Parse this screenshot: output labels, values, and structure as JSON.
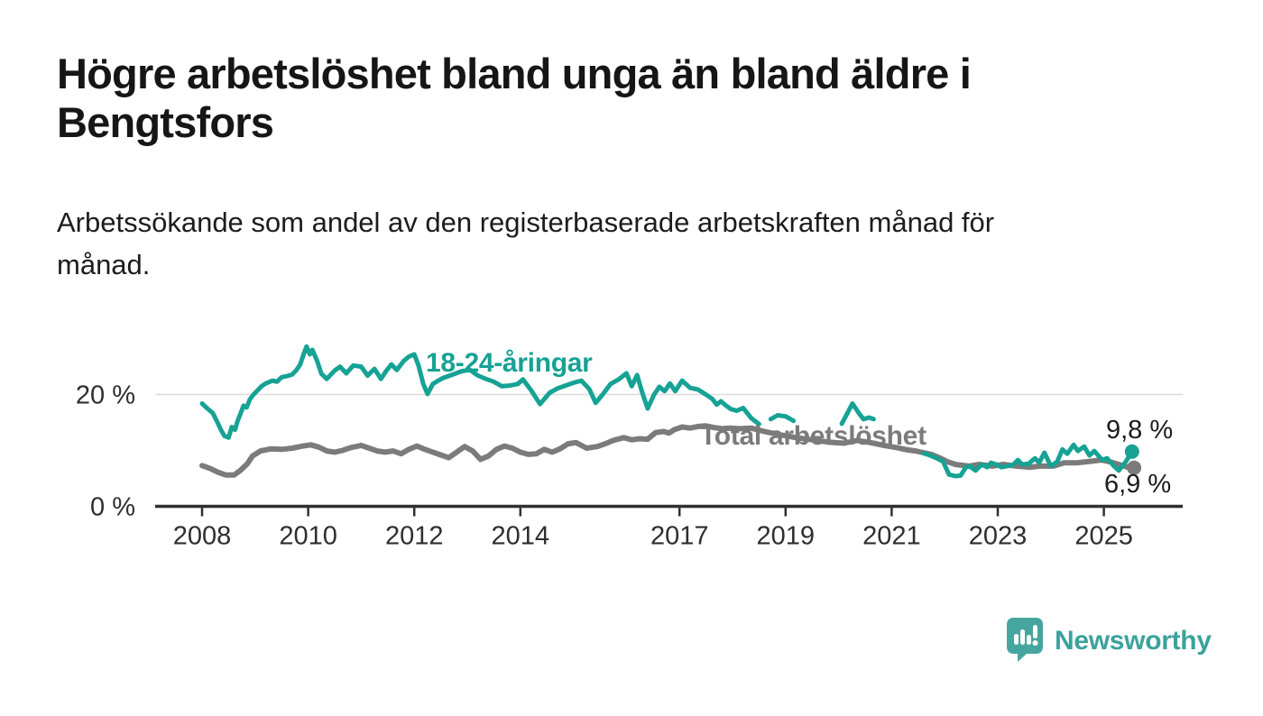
{
  "header": {
    "title_lines": [
      "Högre arbetslöshet bland unga än bland äldre i",
      "Bengtsfors"
    ],
    "subtitle_lines": [
      "Arbetssökande som andel av den registerbaserade arbetskraften månad för",
      "månad."
    ]
  },
  "chart_data": {
    "type": "line",
    "unit": "%",
    "grid": "horizontal gridline at 20 % only",
    "legend_position": "inline labels on lines",
    "ylim": [
      0,
      31
    ],
    "x_range": [
      2008,
      2025.6
    ],
    "y_ticks": [
      {
        "value": 0,
        "label": "0 %"
      },
      {
        "value": 20,
        "label": "20 %"
      }
    ],
    "x_ticks": [
      {
        "value": 2008,
        "label": "2008"
      },
      {
        "value": 2010,
        "label": "2010"
      },
      {
        "value": 2012,
        "label": "2012"
      },
      {
        "value": 2014,
        "label": "2014"
      },
      {
        "value": 2017,
        "label": "2017"
      },
      {
        "value": 2019,
        "label": "2019"
      },
      {
        "value": 2021,
        "label": "2021"
      },
      {
        "value": 2023,
        "label": "2023"
      },
      {
        "value": 2025,
        "label": "2025"
      }
    ],
    "series": [
      {
        "name": "Total arbetslöshet",
        "color": "#7b7b7b",
        "end_label": "6,9 %",
        "end_value": 6.9,
        "segments": [
          [
            [
              2008.0,
              7.3
            ],
            [
              2008.15,
              6.8
            ],
            [
              2008.3,
              6.1
            ],
            [
              2008.45,
              5.6
            ],
            [
              2008.6,
              5.6
            ],
            [
              2008.72,
              6.4
            ],
            [
              2008.85,
              7.6
            ],
            [
              2008.95,
              9.0
            ],
            [
              2009.1,
              9.9
            ],
            [
              2009.3,
              10.3
            ],
            [
              2009.5,
              10.2
            ],
            [
              2009.7,
              10.4
            ],
            [
              2009.9,
              10.8
            ],
            [
              2010.05,
              11.0
            ],
            [
              2010.2,
              10.6
            ],
            [
              2010.35,
              9.9
            ],
            [
              2010.5,
              9.7
            ],
            [
              2010.65,
              10.0
            ],
            [
              2010.8,
              10.5
            ],
            [
              2011.0,
              10.9
            ],
            [
              2011.15,
              10.4
            ],
            [
              2011.3,
              9.9
            ],
            [
              2011.45,
              9.7
            ],
            [
              2011.6,
              9.9
            ],
            [
              2011.75,
              9.4
            ],
            [
              2011.9,
              10.2
            ],
            [
              2012.05,
              10.8
            ],
            [
              2012.2,
              10.2
            ],
            [
              2012.35,
              9.7
            ],
            [
              2012.5,
              9.2
            ],
            [
              2012.65,
              8.7
            ],
            [
              2012.8,
              9.7
            ],
            [
              2012.95,
              10.7
            ],
            [
              2013.1,
              9.9
            ],
            [
              2013.25,
              8.4
            ],
            [
              2013.4,
              9.0
            ],
            [
              2013.55,
              10.2
            ],
            [
              2013.7,
              10.8
            ],
            [
              2013.85,
              10.4
            ],
            [
              2014.0,
              9.7
            ],
            [
              2014.15,
              9.3
            ],
            [
              2014.3,
              9.4
            ],
            [
              2014.45,
              10.2
            ],
            [
              2014.6,
              9.7
            ],
            [
              2014.75,
              10.3
            ],
            [
              2014.9,
              11.2
            ],
            [
              2015.05,
              11.4
            ],
            [
              2015.25,
              10.4
            ],
            [
              2015.45,
              10.7
            ],
            [
              2015.6,
              11.2
            ],
            [
              2015.75,
              11.8
            ],
            [
              2015.95,
              12.3
            ],
            [
              2016.1,
              11.9
            ],
            [
              2016.25,
              12.1
            ],
            [
              2016.4,
              12.0
            ],
            [
              2016.55,
              13.2
            ],
            [
              2016.7,
              13.4
            ],
            [
              2016.8,
              13.1
            ],
            [
              2016.9,
              13.7
            ],
            [
              2017.05,
              14.2
            ],
            [
              2017.2,
              14.0
            ],
            [
              2017.35,
              14.3
            ],
            [
              2017.5,
              14.4
            ],
            [
              2017.65,
              14.1
            ],
            [
              2017.8,
              13.9
            ],
            [
              2017.95,
              14.0
            ],
            [
              2018.15,
              13.9
            ],
            [
              2018.35,
              14.0
            ],
            [
              2018.6,
              13.4
            ],
            [
              2018.9,
              12.8
            ],
            [
              2019.2,
              12.3
            ],
            [
              2019.5,
              11.9
            ],
            [
              2019.8,
              11.5
            ],
            [
              2020.1,
              11.3
            ],
            [
              2020.35,
              11.8
            ],
            [
              2020.6,
              11.4
            ],
            [
              2020.85,
              10.9
            ],
            [
              2021.1,
              10.5
            ],
            [
              2021.3,
              10.1
            ],
            [
              2021.45,
              9.9
            ],
            [
              2021.6,
              9.6
            ],
            [
              2021.75,
              9.3
            ],
            [
              2021.9,
              8.7
            ],
            [
              2022.05,
              8.0
            ],
            [
              2022.2,
              7.5
            ],
            [
              2022.45,
              7.2
            ],
            [
              2022.65,
              7.5
            ],
            [
              2022.9,
              7.2
            ],
            [
              2023.1,
              7.5
            ],
            [
              2023.35,
              7.2
            ],
            [
              2023.6,
              7.0
            ],
            [
              2023.8,
              7.2
            ],
            [
              2024.05,
              7.2
            ],
            [
              2024.25,
              7.8
            ],
            [
              2024.5,
              7.8
            ],
            [
              2024.7,
              8.0
            ],
            [
              2024.95,
              8.3
            ],
            [
              2025.1,
              8.0
            ],
            [
              2025.28,
              7.5
            ],
            [
              2025.45,
              7.0
            ],
            [
              2025.57,
              6.9
            ]
          ]
        ]
      },
      {
        "name": "18-24-åringar",
        "color": "#16a294",
        "end_label": "9,8 %",
        "end_value": 9.8,
        "segments": [
          [
            [
              2008.0,
              18.4
            ],
            [
              2008.1,
              17.5
            ],
            [
              2008.2,
              16.7
            ],
            [
              2008.28,
              15.2
            ],
            [
              2008.36,
              13.6
            ],
            [
              2008.42,
              12.6
            ],
            [
              2008.5,
              12.3
            ],
            [
              2008.56,
              14.2
            ],
            [
              2008.62,
              13.7
            ],
            [
              2008.67,
              15.3
            ],
            [
              2008.73,
              16.7
            ],
            [
              2008.78,
              18.0
            ],
            [
              2008.84,
              17.7
            ],
            [
              2008.9,
              19.1
            ],
            [
              2008.96,
              19.9
            ],
            [
              2009.04,
              20.7
            ],
            [
              2009.12,
              21.5
            ],
            [
              2009.2,
              22.0
            ],
            [
              2009.33,
              22.5
            ],
            [
              2009.41,
              22.3
            ],
            [
              2009.5,
              23.1
            ],
            [
              2009.6,
              23.3
            ],
            [
              2009.7,
              23.6
            ],
            [
              2009.78,
              24.4
            ],
            [
              2009.85,
              25.4
            ],
            [
              2009.9,
              26.8
            ],
            [
              2009.97,
              28.6
            ],
            [
              2010.03,
              27.2
            ],
            [
              2010.08,
              28.0
            ],
            [
              2010.17,
              26.0
            ],
            [
              2010.25,
              23.7
            ],
            [
              2010.35,
              22.8
            ],
            [
              2010.5,
              24.3
            ],
            [
              2010.6,
              25.0
            ],
            [
              2010.72,
              23.8
            ],
            [
              2010.85,
              25.2
            ],
            [
              2011.0,
              25.0
            ],
            [
              2011.12,
              23.4
            ],
            [
              2011.25,
              24.6
            ],
            [
              2011.37,
              22.8
            ],
            [
              2011.47,
              24.2
            ],
            [
              2011.57,
              25.4
            ],
            [
              2011.67,
              24.4
            ],
            [
              2011.8,
              26.0
            ],
            [
              2011.9,
              26.8
            ],
            [
              2012.0,
              27.2
            ],
            [
              2012.08,
              25.2
            ],
            [
              2012.17,
              21.9
            ],
            [
              2012.25,
              20.1
            ],
            [
              2012.35,
              21.9
            ],
            [
              2012.45,
              22.5
            ],
            [
              2012.55,
              23.0
            ],
            [
              2012.7,
              23.5
            ],
            [
              2012.9,
              24.2
            ],
            [
              2013.05,
              24.4
            ],
            [
              2013.2,
              23.4
            ],
            [
              2013.35,
              22.8
            ],
            [
              2013.5,
              22.3
            ],
            [
              2013.65,
              21.5
            ],
            [
              2013.8,
              21.6
            ],
            [
              2013.95,
              21.9
            ],
            [
              2014.05,
              22.7
            ],
            [
              2014.2,
              20.8
            ],
            [
              2014.37,
              18.3
            ],
            [
              2014.55,
              20.3
            ],
            [
              2014.7,
              21.1
            ],
            [
              2014.85,
              21.6
            ],
            [
              2015.0,
              22.1
            ],
            [
              2015.15,
              22.5
            ],
            [
              2015.3,
              21.0
            ],
            [
              2015.42,
              18.5
            ],
            [
              2015.55,
              20.0
            ],
            [
              2015.7,
              21.9
            ],
            [
              2015.85,
              22.7
            ],
            [
              2016.0,
              23.8
            ],
            [
              2016.1,
              21.5
            ],
            [
              2016.2,
              23.5
            ],
            [
              2016.3,
              20.3
            ],
            [
              2016.4,
              17.5
            ],
            [
              2016.52,
              20.0
            ],
            [
              2016.62,
              21.4
            ],
            [
              2016.72,
              20.6
            ],
            [
              2016.82,
              22.0
            ],
            [
              2016.92,
              20.6
            ],
            [
              2017.05,
              22.5
            ],
            [
              2017.2,
              21.2
            ],
            [
              2017.35,
              20.9
            ],
            [
              2017.5,
              20.0
            ],
            [
              2017.62,
              19.2
            ],
            [
              2017.7,
              18.2
            ],
            [
              2017.78,
              18.8
            ],
            [
              2017.88,
              18.0
            ],
            [
              2017.97,
              17.4
            ],
            [
              2018.08,
              17.1
            ],
            [
              2018.2,
              17.6
            ],
            [
              2018.35,
              15.8
            ],
            [
              2018.5,
              14.7
            ]
          ],
          [
            [
              2018.72,
              15.6
            ],
            [
              2018.85,
              16.3
            ],
            [
              2019.0,
              16.1
            ],
            [
              2019.15,
              15.3
            ]
          ],
          [
            [
              2020.06,
              14.8
            ],
            [
              2020.15,
              16.4
            ],
            [
              2020.26,
              18.4
            ],
            [
              2020.38,
              16.7
            ],
            [
              2020.47,
              15.6
            ],
            [
              2020.57,
              15.9
            ],
            [
              2020.66,
              15.6
            ]
          ],
          [
            [
              2021.6,
              9.5
            ],
            [
              2021.7,
              9.2
            ],
            [
              2021.85,
              8.6
            ],
            [
              2021.97,
              8.0
            ],
            [
              2022.08,
              5.7
            ],
            [
              2022.2,
              5.4
            ],
            [
              2022.3,
              5.5
            ],
            [
              2022.4,
              7.0
            ],
            [
              2022.47,
              7.2
            ],
            [
              2022.58,
              6.4
            ],
            [
              2022.7,
              7.5
            ],
            [
              2022.8,
              7.0
            ],
            [
              2022.87,
              7.8
            ],
            [
              2022.97,
              7.5
            ],
            [
              2023.07,
              7.0
            ],
            [
              2023.18,
              7.2
            ],
            [
              2023.3,
              7.5
            ],
            [
              2023.38,
              8.3
            ],
            [
              2023.46,
              7.5
            ],
            [
              2023.58,
              7.6
            ],
            [
              2023.7,
              8.6
            ],
            [
              2023.78,
              7.8
            ],
            [
              2023.88,
              9.6
            ],
            [
              2024.0,
              7.2
            ],
            [
              2024.12,
              8.0
            ],
            [
              2024.22,
              10.2
            ],
            [
              2024.31,
              9.4
            ],
            [
              2024.43,
              11.0
            ],
            [
              2024.51,
              9.9
            ],
            [
              2024.63,
              10.7
            ],
            [
              2024.73,
              9.1
            ],
            [
              2024.82,
              9.9
            ],
            [
              2024.97,
              8.3
            ],
            [
              2025.06,
              8.6
            ],
            [
              2025.19,
              7.2
            ],
            [
              2025.28,
              6.4
            ],
            [
              2025.4,
              7.8
            ],
            [
              2025.53,
              9.8
            ]
          ]
        ]
      }
    ]
  },
  "footer": {
    "brand": "Newsworthy"
  }
}
